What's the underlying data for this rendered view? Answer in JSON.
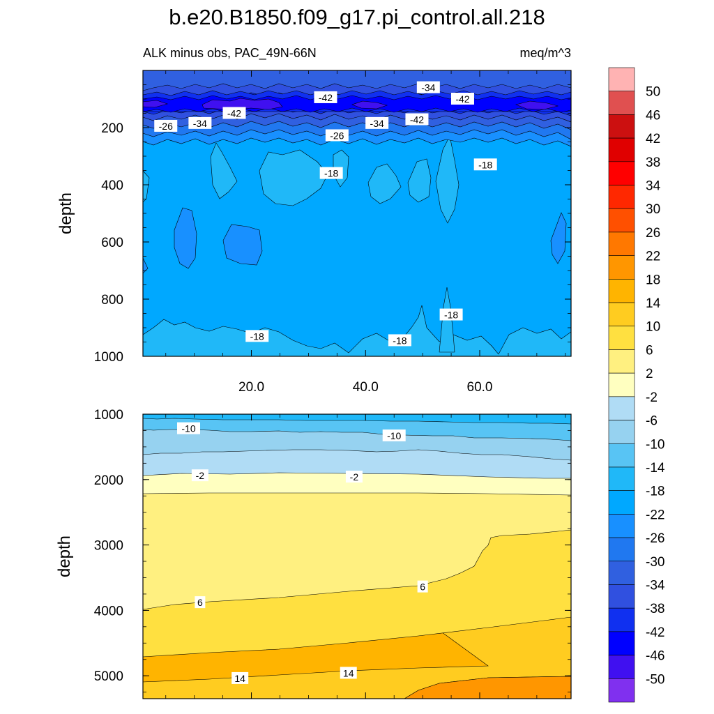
{
  "title": "b.e20.B1850.f09_g17.pi_control.all.218",
  "subtitle_left": "ALK minus obs, PAC_49N-66N",
  "subtitle_right": "meq/m^3",
  "chart_data": [
    {
      "type": "contour",
      "panel": "upper",
      "ylabel": "depth",
      "xlabel": "",
      "xlim": [
        1,
        76
      ],
      "ylim": [
        0,
        1000
      ],
      "y_inverted": true,
      "xticks": [
        20,
        40,
        60
      ],
      "xtick_labels": [
        "20.0",
        "40.0",
        "60.0"
      ],
      "yticks": [
        200,
        400,
        600,
        800,
        1000
      ],
      "ytick_labels": [
        "200",
        "400",
        "600",
        "800",
        "1000"
      ],
      "contour_labels": [
        {
          "text": "-42",
          "x": 33,
          "y": 95
        },
        {
          "text": "-34",
          "x": 51,
          "y": 60
        },
        {
          "text": "-42",
          "x": 57,
          "y": 100
        },
        {
          "text": "-42",
          "x": 17,
          "y": 150
        },
        {
          "text": "-26",
          "x": 5,
          "y": 195
        },
        {
          "text": "-34",
          "x": 11,
          "y": 185
        },
        {
          "text": "-34",
          "x": 42,
          "y": 185
        },
        {
          "text": "-42",
          "x": 49,
          "y": 172
        },
        {
          "text": "-26",
          "x": 35,
          "y": 228
        },
        {
          "text": "-18",
          "x": 34,
          "y": 360
        },
        {
          "text": "-18",
          "x": 61,
          "y": 330
        },
        {
          "text": "-18",
          "x": 21,
          "y": 930
        },
        {
          "text": "-18",
          "x": 46,
          "y": 945
        },
        {
          "text": "-18",
          "x": 55,
          "y": 855
        }
      ]
    },
    {
      "type": "contour",
      "panel": "lower",
      "ylabel": "depth",
      "xlabel": "",
      "xlim": [
        1,
        76
      ],
      "ylim": [
        1000,
        5350
      ],
      "y_inverted": true,
      "yticks": [
        1000,
        2000,
        3000,
        4000,
        5000
      ],
      "ytick_labels": [
        "1000",
        "2000",
        "3000",
        "4000",
        "5000"
      ],
      "contour_labels": [
        {
          "text": "-10",
          "x": 9,
          "y": 1220
        },
        {
          "text": "-10",
          "x": 45,
          "y": 1330
        },
        {
          "text": "-2",
          "x": 11,
          "y": 1940
        },
        {
          "text": "-2",
          "x": 38,
          "y": 1960
        },
        {
          "text": "6",
          "x": 11,
          "y": 3880
        },
        {
          "text": "6",
          "x": 50,
          "y": 3640
        },
        {
          "text": "14",
          "x": 18,
          "y": 5040
        },
        {
          "text": "14",
          "x": 37,
          "y": 4960
        }
      ]
    }
  ],
  "colorbar": {
    "labels": [
      "50",
      "46",
      "42",
      "38",
      "34",
      "30",
      "26",
      "22",
      "18",
      "14",
      "10",
      "6",
      "2",
      "-2",
      "-6",
      "-10",
      "-14",
      "-18",
      "-22",
      "-26",
      "-30",
      "-34",
      "-38",
      "-42",
      "-46",
      "-50"
    ],
    "colors": [
      "#ffb3b3",
      "#e05050",
      "#cc1010",
      "#e00000",
      "#ff0000",
      "#ff2800",
      "#ff5000",
      "#ff7800",
      "#ff9600",
      "#ffb400",
      "#ffcc20",
      "#ffe040",
      "#fff080",
      "#ffffc0",
      "#b0dcf5",
      "#96d2f0",
      "#58c4f4",
      "#20b8f8",
      "#00a8ff",
      "#1890ff",
      "#2078f0",
      "#3060e0",
      "#3050e0",
      "#1030f0",
      "#0000ff",
      "#4010f0",
      "#8030ef"
    ]
  }
}
